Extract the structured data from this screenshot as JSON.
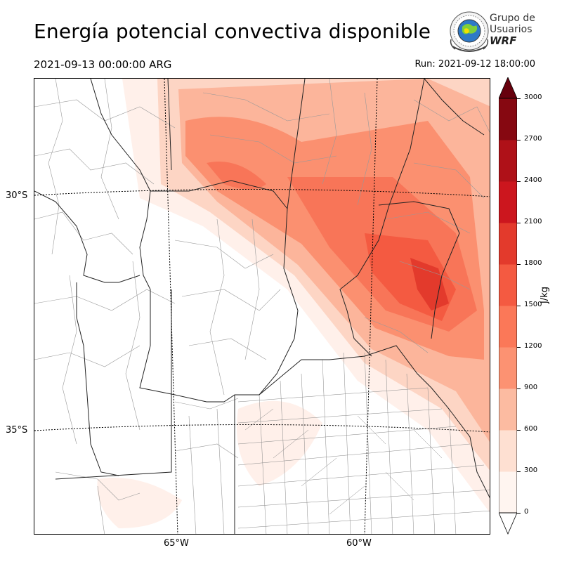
{
  "title": "Energía potencial convectiva disponible",
  "valid_time": "2021-09-13 00:00:00 ARG",
  "run_time": "Run: 2021-09-12 18:00:00",
  "logo": {
    "line1": "Grupo de",
    "line2": "Usuarios",
    "line3": "WRF"
  },
  "map": {
    "lat_labels": [
      "30°S",
      "35°S"
    ],
    "lon_labels": [
      "65°W",
      "60°W"
    ]
  },
  "colorbar": {
    "unit": "J/kg",
    "ticks": [
      "0",
      "300",
      "600",
      "900",
      "1200",
      "1500",
      "1800",
      "2100",
      "2400",
      "2700",
      "3000"
    ],
    "colors": [
      "#fff5f0",
      "#fee0d2",
      "#fcbba1",
      "#fc9272",
      "#fb7858",
      "#f45a41",
      "#e33a2c",
      "#cc161e",
      "#af1118",
      "#860811"
    ],
    "over_color": "#67000d"
  },
  "chart_data": {
    "type": "heatmap",
    "title": "Energía potencial convectiva disponible",
    "subtitle": "2021-09-13 00:00:00 ARG",
    "run": "Run: 2021-09-12 18:00:00",
    "variable_unit": "J/kg",
    "color_levels": [
      0,
      300,
      600,
      900,
      1200,
      1500,
      1800,
      2100,
      2400,
      2700,
      3000
    ],
    "lat_gridlines": [
      "30°S",
      "35°S"
    ],
    "lon_gridlines": [
      "65°W",
      "60°W"
    ],
    "max_region_value_range": [
      1800,
      2100
    ]
  }
}
